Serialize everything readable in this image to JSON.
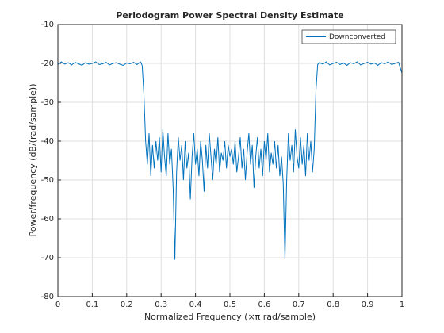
{
  "chart_data": {
    "type": "line",
    "title": "Periodogram Power Spectral Density Estimate",
    "xlabel": "Normalized Frequency  (×π rad/sample)",
    "ylabel": "Power/frequency (dB/(rad/sample))",
    "x": [
      0,
      0.01,
      0.02,
      0.03,
      0.04,
      0.05,
      0.06,
      0.07,
      0.08,
      0.09,
      0.1,
      0.11,
      0.12,
      0.13,
      0.14,
      0.15,
      0.16,
      0.17,
      0.18,
      0.19,
      0.2,
      0.21,
      0.22,
      0.23,
      0.24,
      0.245,
      0.25,
      0.255,
      0.26,
      0.265,
      0.27,
      0.275,
      0.28,
      0.285,
      0.29,
      0.295,
      0.3,
      0.305,
      0.31,
      0.315,
      0.32,
      0.325,
      0.33,
      0.335,
      0.34,
      0.345,
      0.35,
      0.355,
      0.36,
      0.365,
      0.37,
      0.375,
      0.38,
      0.385,
      0.39,
      0.395,
      0.4,
      0.405,
      0.41,
      0.415,
      0.42,
      0.425,
      0.43,
      0.435,
      0.44,
      0.445,
      0.45,
      0.455,
      0.46,
      0.465,
      0.47,
      0.475,
      0.48,
      0.485,
      0.49,
      0.495,
      0.5,
      0.505,
      0.51,
      0.515,
      0.52,
      0.525,
      0.53,
      0.535,
      0.54,
      0.545,
      0.55,
      0.555,
      0.56,
      0.565,
      0.57,
      0.575,
      0.58,
      0.585,
      0.59,
      0.595,
      0.6,
      0.605,
      0.61,
      0.615,
      0.62,
      0.625,
      0.63,
      0.635,
      0.64,
      0.645,
      0.65,
      0.655,
      0.66,
      0.665,
      0.67,
      0.675,
      0.68,
      0.685,
      0.69,
      0.695,
      0.7,
      0.705,
      0.71,
      0.715,
      0.72,
      0.725,
      0.73,
      0.735,
      0.74,
      0.745,
      0.75,
      0.755,
      0.76,
      0.77,
      0.78,
      0.79,
      0.8,
      0.81,
      0.82,
      0.83,
      0.84,
      0.85,
      0.86,
      0.87,
      0.88,
      0.89,
      0.9,
      0.91,
      0.92,
      0.93,
      0.94,
      0.95,
      0.96,
      0.97,
      0.98,
      0.99,
      1
    ],
    "series": [
      {
        "name": "Downconverted",
        "color": "#0072bd",
        "values": [
          -20.3,
          -19.6,
          -20.2,
          -19.8,
          -20.4,
          -19.7,
          -20.1,
          -20.5,
          -19.8,
          -20.2,
          -20.0,
          -19.6,
          -20.3,
          -20.1,
          -19.7,
          -20.4,
          -20.0,
          -19.8,
          -20.2,
          -20.5,
          -19.9,
          -20.1,
          -19.7,
          -20.3,
          -19.6,
          -20.5,
          -28,
          -40,
          -46,
          -38,
          -49,
          -41,
          -47,
          -40,
          -45,
          -39,
          -48,
          -37,
          -44,
          -49,
          -38,
          -46,
          -42,
          -52,
          -70.5,
          -48,
          -39,
          -45,
          -41,
          -50,
          -40,
          -47,
          -43,
          -55,
          -44,
          -38,
          -46,
          -42,
          -49,
          -40,
          -45,
          -53,
          -41,
          -47,
          -38,
          -44,
          -50,
          -42,
          -46,
          -39,
          -48,
          -43,
          -45,
          -40,
          -47,
          -41,
          -44,
          -42,
          -46,
          -40,
          -48,
          -44,
          -39,
          -47,
          -42,
          -50,
          -43,
          -38,
          -46,
          -41,
          -52,
          -44,
          -39,
          -47,
          -42,
          -49,
          -40,
          -45,
          -38,
          -48,
          -43,
          -46,
          -40,
          -47,
          -41,
          -49,
          -44,
          -51,
          -70.5,
          -50,
          -38,
          -45,
          -41,
          -48,
          -37,
          -44,
          -47,
          -39,
          -46,
          -41,
          -49,
          -38,
          -45,
          -40,
          -48,
          -42,
          -27,
          -20.3,
          -19.8,
          -20.2,
          -19.6,
          -20.4,
          -20.0,
          -19.7,
          -20.3,
          -19.9,
          -20.5,
          -19.8,
          -20.1,
          -19.6,
          -20.4,
          -20.0,
          -19.7,
          -20.2,
          -19.9,
          -20.5,
          -19.8,
          -20.1,
          -19.6,
          -20.3,
          -20.0,
          -19.7,
          -22.5
        ]
      }
    ],
    "xlim": [
      0,
      1
    ],
    "xticks": [
      0,
      0.1,
      0.2,
      0.3,
      0.4,
      0.5,
      0.6,
      0.7,
      0.8,
      0.9,
      1
    ],
    "ylim": [
      -80,
      -10
    ],
    "yticks": [
      -80,
      -70,
      -60,
      -50,
      -40,
      -30,
      -20,
      -10
    ],
    "grid": true,
    "legend": "northeast"
  }
}
